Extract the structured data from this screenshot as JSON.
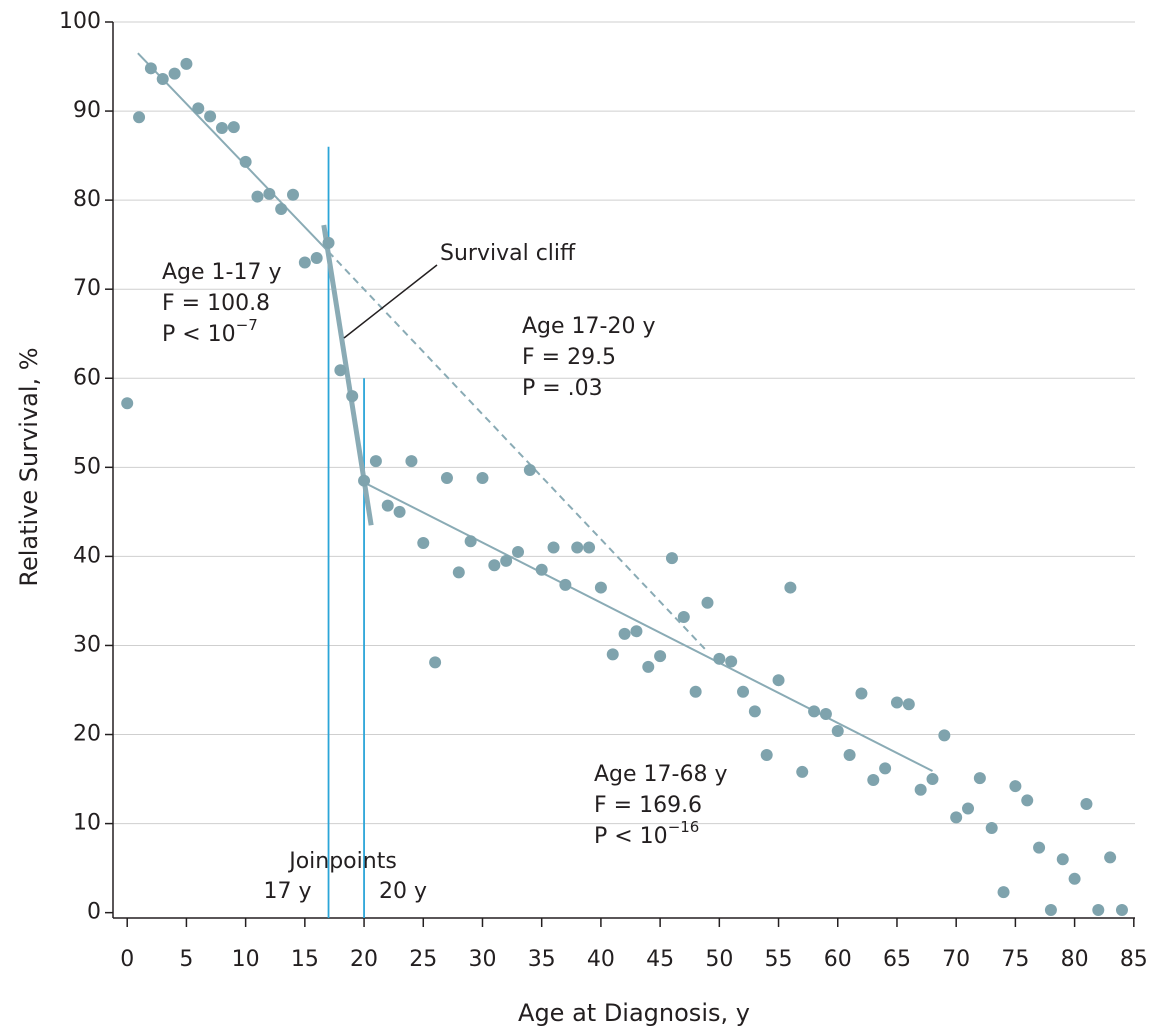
{
  "chart_data": {
    "type": "scatter",
    "xlabel": "Age at Diagnosis, y",
    "ylabel": "Relative Survival, %",
    "x": [
      0,
      1,
      2,
      3,
      4,
      5,
      6,
      7,
      8,
      9,
      10,
      11,
      12,
      13,
      14,
      15,
      16,
      17,
      18,
      19,
      20,
      21,
      22,
      23,
      24,
      25,
      26,
      27,
      28,
      29,
      30,
      31,
      32,
      33,
      34,
      35,
      36,
      37,
      38,
      39,
      40,
      41,
      42,
      43,
      44,
      45,
      46,
      47,
      48,
      49,
      50,
      51,
      52,
      53,
      54,
      55,
      56,
      57,
      58,
      59,
      60,
      61,
      62,
      63,
      64,
      65,
      66,
      67,
      68,
      69,
      70,
      71,
      72,
      73,
      74,
      75,
      76,
      77,
      78,
      79,
      80,
      81,
      82,
      83,
      84
    ],
    "values": [
      57.2,
      89.3,
      94.8,
      93.6,
      94.2,
      95.3,
      90.3,
      89.4,
      88.1,
      88.2,
      84.3,
      80.4,
      80.7,
      79.0,
      80.6,
      73.0,
      73.5,
      75.2,
      60.9,
      58.0,
      48.5,
      50.7,
      45.7,
      45.0,
      50.7,
      41.5,
      28.1,
      48.8,
      38.2,
      41.7,
      48.8,
      39.0,
      39.5,
      40.5,
      49.7,
      38.5,
      41.0,
      36.8,
      41.0,
      41.0,
      36.5,
      29.0,
      31.3,
      31.6,
      27.6,
      28.8,
      39.8,
      33.2,
      24.8,
      34.8,
      28.5,
      28.2,
      24.8,
      22.6,
      17.7,
      26.1,
      36.5,
      15.8,
      22.6,
      22.3,
      20.4,
      17.7,
      24.6,
      14.9,
      16.2,
      23.6,
      23.4,
      13.8,
      15.0,
      19.9,
      10.7,
      11.7,
      15.1,
      9.5,
      2.3,
      14.2,
      12.6,
      7.3,
      0.3,
      6.0,
      3.8,
      12.2,
      0.3,
      6.2,
      0.3
    ],
    "color": "#7fa3ad",
    "fits": [
      {
        "x": [
          0.9,
          17
        ],
        "y": [
          96.5,
          74.2
        ],
        "style": "solid"
      },
      {
        "x": [
          16.6,
          20.6
        ],
        "y": [
          77.2,
          43.5
        ],
        "style": "thick"
      },
      {
        "x": [
          20,
          68
        ],
        "y": [
          48.3,
          15.9
        ],
        "style": "solid"
      },
      {
        "x": [
          17,
          49
        ],
        "y": [
          74.2,
          29.3
        ],
        "style": "dashed"
      }
    ],
    "fit_color": "#8aabb5",
    "joinpoints_label": "Joinpoints",
    "joinpoints": [
      {
        "x": 17,
        "top": 86,
        "label": "17 y"
      },
      {
        "x": 20,
        "top": 60,
        "label": "20 y"
      }
    ],
    "joinpoint_color": "#2ba5d8",
    "callout": "Survival cliff",
    "annotations": [
      {
        "lines": [
          "Age 1-17 y",
          "F = 100.8",
          "P < 10"
        ],
        "superscript": "−7"
      },
      {
        "lines": [
          "Age 17-20 y",
          "F = 29.5",
          "P = .03"
        ]
      },
      {
        "lines": [
          "Age 17-68 y",
          "F = 169.6",
          "P < 10"
        ],
        "superscript": "−16"
      }
    ],
    "xlim": [
      -1.2,
      85.1
    ],
    "ylim": [
      -0.6,
      100
    ],
    "xticks": [
      0,
      5,
      10,
      15,
      20,
      25,
      30,
      35,
      40,
      45,
      50,
      55,
      60,
      65,
      70,
      75,
      80,
      85
    ],
    "yticks": [
      0,
      10,
      20,
      30,
      40,
      50,
      60,
      70,
      80,
      90,
      100
    ],
    "grid": true
  }
}
